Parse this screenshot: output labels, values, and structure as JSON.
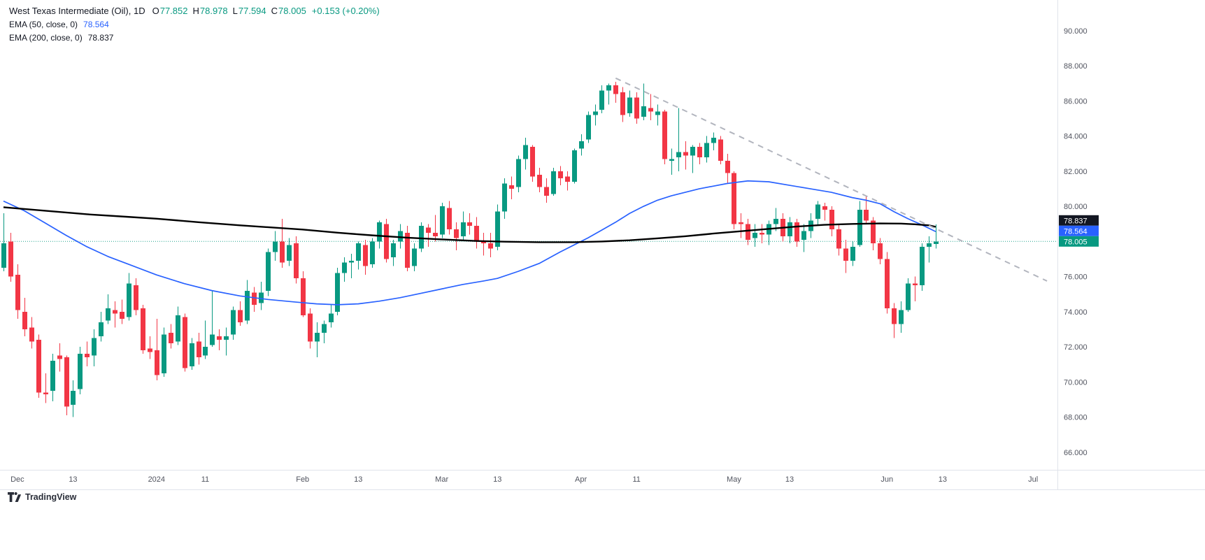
{
  "legend": {
    "title": "West Texas Intermediate (Oil), 1D",
    "ohlc": [
      {
        "label": "O",
        "value": "77.852"
      },
      {
        "label": "H",
        "value": "78.978"
      },
      {
        "label": "L",
        "value": "77.594"
      },
      {
        "label": "C",
        "value": "78.005"
      }
    ],
    "change": "+0.153 (+0.20%)"
  },
  "indicators": [
    {
      "label": "EMA (50, close, 0)",
      "value": "78.564",
      "color": "#2962ff"
    },
    {
      "label": "EMA (200, close, 0)",
      "value": "78.837",
      "color": "#131722"
    }
  ],
  "watermark": "TradingView",
  "chart_data": {
    "type": "candlestick",
    "title": "West Texas Intermediate (Oil), 1D",
    "timeframe": "1D",
    "ylim": [
      65.0,
      91.75
    ],
    "y_ticks": [
      90,
      88,
      86,
      84,
      82,
      80,
      76,
      74,
      72,
      70,
      68,
      66
    ],
    "x_ticks": [
      {
        "label": "Dec",
        "slot": 2
      },
      {
        "label": "13",
        "slot": 10
      },
      {
        "label": "2024",
        "slot": 22
      },
      {
        "label": "11",
        "slot": 29
      },
      {
        "label": "Feb",
        "slot": 43
      },
      {
        "label": "13",
        "slot": 51
      },
      {
        "label": "Mar",
        "slot": 63
      },
      {
        "label": "13",
        "slot": 71
      },
      {
        "label": "Apr",
        "slot": 83
      },
      {
        "label": "11",
        "slot": 91
      },
      {
        "label": "May",
        "slot": 105
      },
      {
        "label": "13",
        "slot": 113
      },
      {
        "label": "Jun",
        "slot": 127
      },
      {
        "label": "13",
        "slot": 135
      },
      {
        "label": "Jul",
        "slot": 148
      }
    ],
    "total_slots": 152,
    "last_price": 78.005,
    "price_badges": [
      {
        "name": "ema200-price-badge",
        "text": "78.837",
        "bg": "#131722"
      },
      {
        "name": "ema50-price-badge",
        "text": "78.564",
        "bg": "#2962ff"
      },
      {
        "name": "last-price-badge",
        "text": "78.005",
        "bg": "#089981"
      }
    ],
    "trendline": {
      "from_slot": 88,
      "from_price": 87.3,
      "to_slot": 150,
      "to_price": 75.75
    },
    "colors": {
      "up": "#089981",
      "down": "#f23645",
      "trend": "#b2b5be",
      "axis_text": "#50535e"
    },
    "ema50": {
      "color": "#2962ff",
      "points": [
        [
          0,
          80.3
        ],
        [
          3,
          79.75
        ],
        [
          6,
          79.05
        ],
        [
          9,
          78.35
        ],
        [
          12,
          77.7
        ],
        [
          15,
          77.15
        ],
        [
          18,
          76.7
        ],
        [
          22,
          76.1
        ],
        [
          26,
          75.6
        ],
        [
          30,
          75.2
        ],
        [
          34,
          74.9
        ],
        [
          38,
          74.7
        ],
        [
          42,
          74.55
        ],
        [
          45,
          74.45
        ],
        [
          48,
          74.4
        ],
        [
          51,
          74.45
        ],
        [
          54,
          74.6
        ],
        [
          57,
          74.8
        ],
        [
          60,
          75.05
        ],
        [
          63,
          75.3
        ],
        [
          66,
          75.55
        ],
        [
          69,
          75.75
        ],
        [
          71,
          75.9
        ],
        [
          74,
          76.3
        ],
        [
          77,
          76.75
        ],
        [
          80,
          77.4
        ],
        [
          82,
          77.8
        ],
        [
          84,
          78.2
        ],
        [
          86,
          78.65
        ],
        [
          88,
          79.1
        ],
        [
          90,
          79.6
        ],
        [
          92,
          80.0
        ],
        [
          94,
          80.35
        ],
        [
          96,
          80.6
        ],
        [
          98,
          80.8
        ],
        [
          100,
          81.0
        ],
        [
          102,
          81.15
        ],
        [
          104,
          81.3
        ],
        [
          107,
          81.45
        ],
        [
          110,
          81.4
        ],
        [
          113,
          81.2
        ],
        [
          116,
          81.0
        ],
        [
          119,
          80.8
        ],
        [
          122,
          80.5
        ],
        [
          124,
          80.35
        ],
        [
          126,
          80.15
        ],
        [
          128,
          79.7
        ],
        [
          130,
          79.3
        ],
        [
          132,
          78.95
        ],
        [
          134,
          78.564
        ]
      ]
    },
    "ema200": {
      "color": "#000000",
      "points": [
        [
          0,
          79.95
        ],
        [
          6,
          79.75
        ],
        [
          12,
          79.55
        ],
        [
          18,
          79.4
        ],
        [
          22,
          79.3
        ],
        [
          28,
          79.1
        ],
        [
          34,
          78.92
        ],
        [
          40,
          78.76
        ],
        [
          43,
          78.68
        ],
        [
          48,
          78.5
        ],
        [
          53,
          78.35
        ],
        [
          58,
          78.22
        ],
        [
          63,
          78.12
        ],
        [
          68,
          78.03
        ],
        [
          72,
          77.99
        ],
        [
          77,
          77.96
        ],
        [
          82,
          77.96
        ],
        [
          86,
          78.0
        ],
        [
          90,
          78.07
        ],
        [
          94,
          78.18
        ],
        [
          98,
          78.3
        ],
        [
          102,
          78.45
        ],
        [
          105,
          78.55
        ],
        [
          108,
          78.65
        ],
        [
          111,
          78.75
        ],
        [
          114,
          78.85
        ],
        [
          118,
          78.95
        ],
        [
          122,
          79.0
        ],
        [
          126,
          79.03
        ],
        [
          129,
          79.02
        ],
        [
          131,
          78.98
        ],
        [
          133,
          78.92
        ],
        [
          134,
          78.837
        ]
      ]
    },
    "candles": [
      [
        76.5,
        79.6,
        76.3,
        77.9
      ],
      [
        78.0,
        78.5,
        75.7,
        76.0
      ],
      [
        76.1,
        76.7,
        73.6,
        74.1
      ],
      [
        74.0,
        74.8,
        72.6,
        73.0
      ],
      [
        73.1,
        73.7,
        71.9,
        72.3
      ],
      [
        72.4,
        72.7,
        69.1,
        69.4
      ],
      [
        69.4,
        70.5,
        68.8,
        69.3
      ],
      [
        69.5,
        71.6,
        68.9,
        71.2
      ],
      [
        71.5,
        72.2,
        70.6,
        71.3
      ],
      [
        71.4,
        71.5,
        68.1,
        68.6
      ],
      [
        68.7,
        70.1,
        68.0,
        69.5
      ],
      [
        69.6,
        72.0,
        69.3,
        71.6
      ],
      [
        71.6,
        72.3,
        70.9,
        71.4
      ],
      [
        71.5,
        73.0,
        70.9,
        72.5
      ],
      [
        72.6,
        74.0,
        72.3,
        73.4
      ],
      [
        73.5,
        75.0,
        73.3,
        74.2
      ],
      [
        74.1,
        74.6,
        73.1,
        73.9
      ],
      [
        74.0,
        74.7,
        73.3,
        73.6
      ],
      [
        73.7,
        76.2,
        73.5,
        75.6
      ],
      [
        75.5,
        75.9,
        73.8,
        74.1
      ],
      [
        74.2,
        74.4,
        71.6,
        71.8
      ],
      [
        71.9,
        72.6,
        71.3,
        71.7
      ],
      [
        71.8,
        73.6,
        70.1,
        70.4
      ],
      [
        70.5,
        73.1,
        70.3,
        72.7
      ],
      [
        72.8,
        73.3,
        71.9,
        72.2
      ],
      [
        72.3,
        74.3,
        72.1,
        73.8
      ],
      [
        73.7,
        73.9,
        70.6,
        70.8
      ],
      [
        70.9,
        72.5,
        70.7,
        72.2
      ],
      [
        72.3,
        72.8,
        71.0,
        71.4
      ],
      [
        71.5,
        73.5,
        71.3,
        72.0
      ],
      [
        72.1,
        75.2,
        72.0,
        72.7
      ],
      [
        72.6,
        73.0,
        71.8,
        72.4
      ],
      [
        72.4,
        73.1,
        71.5,
        72.6
      ],
      [
        72.7,
        74.3,
        72.4,
        74.1
      ],
      [
        74.1,
        74.6,
        73.2,
        73.4
      ],
      [
        73.5,
        75.8,
        73.3,
        75.2
      ],
      [
        75.1,
        75.4,
        74.0,
        74.4
      ],
      [
        74.5,
        75.7,
        74.1,
        75.1
      ],
      [
        75.2,
        77.6,
        74.9,
        77.4
      ],
      [
        77.4,
        78.6,
        76.9,
        78.0
      ],
      [
        78.0,
        79.3,
        76.5,
        76.8
      ],
      [
        76.9,
        78.2,
        76.6,
        77.8
      ],
      [
        77.9,
        78.3,
        75.6,
        75.9
      ],
      [
        75.9,
        76.3,
        73.7,
        73.8
      ],
      [
        73.9,
        74.2,
        71.9,
        72.3
      ],
      [
        72.3,
        73.4,
        71.4,
        72.8
      ],
      [
        72.8,
        73.5,
        72.2,
        73.3
      ],
      [
        73.4,
        74.4,
        73.1,
        73.9
      ],
      [
        74.0,
        76.5,
        73.8,
        76.2
      ],
      [
        76.2,
        77.1,
        75.7,
        76.8
      ],
      [
        76.8,
        77.3,
        75.9,
        76.9
      ],
      [
        76.9,
        78.0,
        76.4,
        77.9
      ],
      [
        77.8,
        78.1,
        76.1,
        76.6
      ],
      [
        76.7,
        78.2,
        76.5,
        78.0
      ],
      [
        78.0,
        79.2,
        77.6,
        79.1
      ],
      [
        79.0,
        79.3,
        76.8,
        77.0
      ],
      [
        77.1,
        78.1,
        76.6,
        77.9
      ],
      [
        78.0,
        79.0,
        77.6,
        78.6
      ],
      [
        78.5,
        78.9,
        76.3,
        76.5
      ],
      [
        76.6,
        77.9,
        76.3,
        77.6
      ],
      [
        77.6,
        79.1,
        77.4,
        78.9
      ],
      [
        78.8,
        79.0,
        77.7,
        78.5
      ],
      [
        78.5,
        79.5,
        78.0,
        78.3
      ],
      [
        78.4,
        80.2,
        78.2,
        80.0
      ],
      [
        79.9,
        80.3,
        78.4,
        78.7
      ],
      [
        78.7,
        79.1,
        77.5,
        78.2
      ],
      [
        78.3,
        79.7,
        78.1,
        79.1
      ],
      [
        79.1,
        79.6,
        78.4,
        78.9
      ],
      [
        78.9,
        79.4,
        77.6,
        78.0
      ],
      [
        78.0,
        78.5,
        77.2,
        77.9
      ],
      [
        77.9,
        78.5,
        77.1,
        77.6
      ],
      [
        77.7,
        80.1,
        77.5,
        79.7
      ],
      [
        79.7,
        81.6,
        79.3,
        81.3
      ],
      [
        81.2,
        81.7,
        80.4,
        81.0
      ],
      [
        81.1,
        82.9,
        80.8,
        82.7
      ],
      [
        82.7,
        83.9,
        82.1,
        83.5
      ],
      [
        83.4,
        83.5,
        81.4,
        81.7
      ],
      [
        81.8,
        82.2,
        80.8,
        81.1
      ],
      [
        81.1,
        81.6,
        80.2,
        80.6
      ],
      [
        80.7,
        82.2,
        80.6,
        82.0
      ],
      [
        82.0,
        82.3,
        81.2,
        81.6
      ],
      [
        81.7,
        82.0,
        80.9,
        81.4
      ],
      [
        81.4,
        83.3,
        81.3,
        83.2
      ],
      [
        83.3,
        84.1,
        82.9,
        83.7
      ],
      [
        83.8,
        85.4,
        83.6,
        85.2
      ],
      [
        85.2,
        85.8,
        84.6,
        85.4
      ],
      [
        85.5,
        86.9,
        85.3,
        86.6
      ],
      [
        86.6,
        87.0,
        85.8,
        86.9
      ],
      [
        86.9,
        87.1,
        85.9,
        86.4
      ],
      [
        86.5,
        86.8,
        84.8,
        85.2
      ],
      [
        85.3,
        86.6,
        85.1,
        86.2
      ],
      [
        86.2,
        86.5,
        84.7,
        85.0
      ],
      [
        85.1,
        87.0,
        84.9,
        85.7
      ],
      [
        85.6,
        86.4,
        84.9,
        85.4
      ],
      [
        85.2,
        85.8,
        84.6,
        85.4
      ],
      [
        85.4,
        85.5,
        82.4,
        82.7
      ],
      [
        82.6,
        83.3,
        81.8,
        82.7
      ],
      [
        82.8,
        85.6,
        82.0,
        83.1
      ],
      [
        83.1,
        83.7,
        82.1,
        82.9
      ],
      [
        82.9,
        83.5,
        81.9,
        83.4
      ],
      [
        83.4,
        83.6,
        82.4,
        82.8
      ],
      [
        82.8,
        84.0,
        82.5,
        83.6
      ],
      [
        83.6,
        84.2,
        83.2,
        83.9
      ],
      [
        83.8,
        84.0,
        82.4,
        82.6
      ],
      [
        82.6,
        83.0,
        81.3,
        81.9
      ],
      [
        81.9,
        82.0,
        78.7,
        79.0
      ],
      [
        79.1,
        79.6,
        78.2,
        79.0
      ],
      [
        79.0,
        79.3,
        77.8,
        78.1
      ],
      [
        78.2,
        79.0,
        77.7,
        78.5
      ],
      [
        78.5,
        79.0,
        77.9,
        78.4
      ],
      [
        78.4,
        79.2,
        77.8,
        79.0
      ],
      [
        79.0,
        79.9,
        78.6,
        79.3
      ],
      [
        79.3,
        79.6,
        78.0,
        78.3
      ],
      [
        78.3,
        79.4,
        77.9,
        79.1
      ],
      [
        79.1,
        79.3,
        77.7,
        78.0
      ],
      [
        78.1,
        79.0,
        77.4,
        78.6
      ],
      [
        78.6,
        79.6,
        78.2,
        79.2
      ],
      [
        79.3,
        80.3,
        78.9,
        80.1
      ],
      [
        80.0,
        80.2,
        79.2,
        79.8
      ],
      [
        79.8,
        80.0,
        78.3,
        78.7
      ],
      [
        78.7,
        79.0,
        77.2,
        77.6
      ],
      [
        77.6,
        78.1,
        76.2,
        76.9
      ],
      [
        76.9,
        78.0,
        76.6,
        77.7
      ],
      [
        77.8,
        80.3,
        77.7,
        79.8
      ],
      [
        79.8,
        80.6,
        79.0,
        79.2
      ],
      [
        79.2,
        79.4,
        77.5,
        77.9
      ],
      [
        77.9,
        78.2,
        76.7,
        77.0
      ],
      [
        77.0,
        77.4,
        73.9,
        74.2
      ],
      [
        74.2,
        74.5,
        72.5,
        73.3
      ],
      [
        73.3,
        74.6,
        72.8,
        74.1
      ],
      [
        74.1,
        75.9,
        74.0,
        75.6
      ],
      [
        75.6,
        76.0,
        74.6,
        75.5
      ],
      [
        75.5,
        77.9,
        75.2,
        77.7
      ],
      [
        77.7,
        78.3,
        76.8,
        77.9
      ],
      [
        77.852,
        78.978,
        77.594,
        78.005
      ]
    ]
  }
}
